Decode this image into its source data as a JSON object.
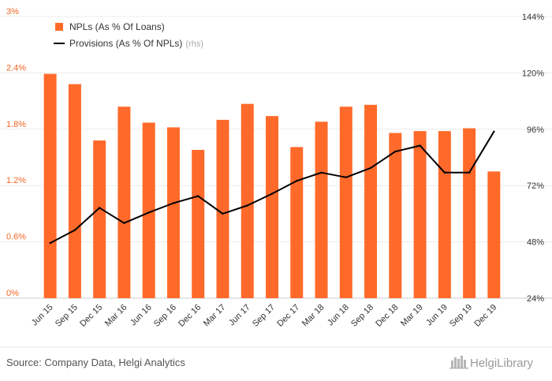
{
  "chart_data": {
    "type": "bar",
    "categories": [
      "Jun 15",
      "Sep 15",
      "Dec 15",
      "Mar 16",
      "Jun 16",
      "Sep 16",
      "Dec 16",
      "Mar 17",
      "Jun 17",
      "Sep 17",
      "Dec 17",
      "Mar 18",
      "Jun 18",
      "Sep 18",
      "Dec 18",
      "Mar 19",
      "Jun 19",
      "Sep 19",
      "Dec 19"
    ],
    "series": [
      {
        "name": "NPLs (As % Of Loans)",
        "type": "bar",
        "axis": "left",
        "color": "#ff6a2b",
        "values": [
          2.39,
          2.28,
          1.68,
          2.04,
          1.87,
          1.82,
          1.58,
          1.9,
          2.07,
          1.94,
          1.61,
          1.88,
          2.04,
          2.06,
          1.76,
          1.78,
          1.78,
          1.81,
          1.35
        ]
      },
      {
        "name": "Provisions (As % Of NPLs)",
        "name_suffix": "(rhs)",
        "type": "line",
        "axis": "right",
        "color": "#000000",
        "values": [
          47.5,
          53.0,
          62.5,
          56.0,
          60.5,
          64.5,
          67.5,
          60.0,
          63.5,
          68.5,
          74.0,
          77.5,
          75.5,
          79.5,
          86.5,
          89.0,
          77.5,
          77.5,
          95.0
        ]
      }
    ],
    "left_axis": {
      "min": 0,
      "max": 3,
      "ticks": [
        "0%",
        "0.6%",
        "1.2%",
        "1.8%",
        "2.4%",
        "3%"
      ],
      "tick_color": "#f26522"
    },
    "right_axis": {
      "min": 24,
      "max": 144,
      "ticks": [
        "24%",
        "48%",
        "72%",
        "96%",
        "120%",
        "144%"
      ]
    },
    "grid": true,
    "legend_position": "top-left"
  },
  "footer": {
    "source": "Source: Company Data, Helgi Analytics",
    "logo_text": "HelgiLibrary"
  }
}
